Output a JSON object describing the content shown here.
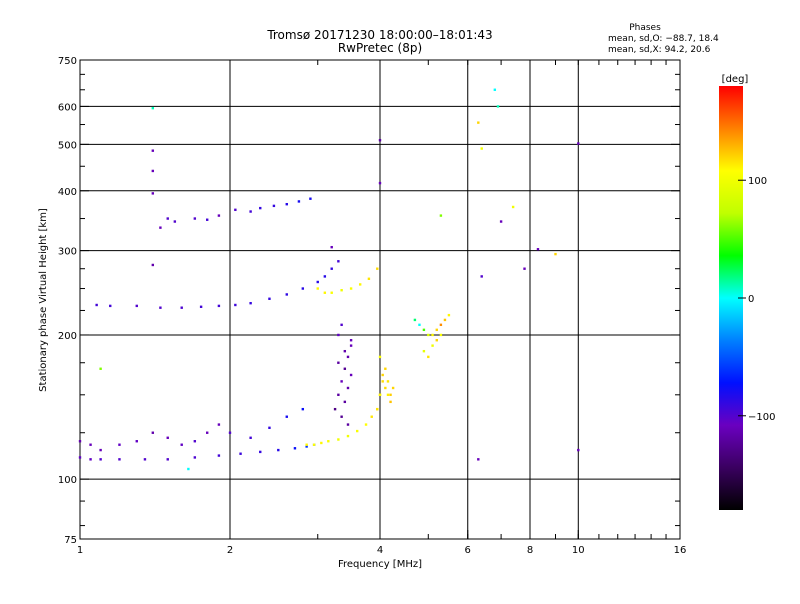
{
  "chart_data": {
    "type": "scatter",
    "title": "Tromsø 20171230 18:00:00–18:01:43",
    "subtitle": "RwPretec (8p)",
    "phases": {
      "title": "Phases",
      "line_o": "mean, sd,O: −88.7, 18.4",
      "line_x": "mean, sd,X:  94.2, 20.6"
    },
    "xlabel": "Frequency [MHz]",
    "ylabel": "Stationary phase Virtual Height [km]",
    "x_scale": "log",
    "y_scale": "log",
    "xlim": [
      1,
      16
    ],
    "ylim": [
      75,
      750
    ],
    "x_ticks": [
      {
        "value": 1,
        "label": "1"
      },
      {
        "value": 2,
        "label": "2"
      },
      {
        "value": 4,
        "label": "4"
      },
      {
        "value": 6,
        "label": "6"
      },
      {
        "value": 8,
        "label": "8"
      },
      {
        "value": 10,
        "label": "10"
      },
      {
        "value": 16,
        "label": "16"
      }
    ],
    "y_ticks": [
      {
        "value": 75,
        "label": "75"
      },
      {
        "value": 100,
        "label": "100"
      },
      {
        "value": 200,
        "label": "200"
      },
      {
        "value": 300,
        "label": "300"
      },
      {
        "value": 400,
        "label": "400"
      },
      {
        "value": 500,
        "label": "500"
      },
      {
        "value": 600,
        "label": "600"
      },
      {
        "value": 750,
        "label": "750"
      }
    ],
    "x_grid": [
      2,
      4,
      6,
      8,
      10
    ],
    "y_grid": [
      100,
      200,
      300,
      400,
      500,
      600
    ],
    "grid": true,
    "colorbar": {
      "label": "[deg]",
      "range": [
        -180,
        180
      ],
      "ticks": [
        {
          "value": 100,
          "label": "100"
        },
        {
          "value": 0,
          "label": "0"
        },
        {
          "value": -100,
          "label": "−100"
        }
      ],
      "stops": [
        "#000000",
        "#3a0060",
        "#6a00c0",
        "#0010ff",
        "#0080ff",
        "#00ffff",
        "#00ff00",
        "#c0ff00",
        "#ffff00",
        "#ff8000",
        "#ff0000"
      ]
    },
    "series": [
      {
        "segments": [
          {
            "x": [
              1.0,
              1.05,
              1.1,
              1.2,
              1.35,
              1.5,
              1.7,
              1.9,
              2.1,
              2.3,
              2.5,
              2.7,
              2.85,
              2.95
            ],
            "y": [
              111,
              110,
              110,
              110,
              110,
              110,
              111,
              112,
              113,
              114,
              115,
              116,
              117,
              118
            ],
            "phase": [
              -105,
              -105,
              -100,
              -100,
              -100,
              -100,
              -98,
              -95,
              -92,
              -90,
              -85,
              -75,
              -60,
              -50
            ]
          },
          {
            "x": [
              1.0,
              1.05,
              1.1,
              1.2,
              1.3,
              1.4,
              1.5,
              1.6,
              1.7,
              1.8,
              1.9,
              2.0,
              2.2,
              2.4,
              2.6,
              2.8
            ],
            "y": [
              120,
              118,
              115,
              118,
              120,
              125,
              122,
              118,
              120,
              125,
              130,
              125,
              122,
              128,
              135,
              140
            ],
            "phase": [
              -115,
              -110,
              -110,
              -105,
              -105,
              -115,
              -110,
              -105,
              -100,
              -110,
              -110,
              -100,
              -95,
              -90,
              -80,
              -75
            ]
          },
          {
            "x": [
              1.08,
              1.15,
              1.3,
              1.45,
              1.6,
              1.75,
              1.9,
              2.05,
              2.2,
              2.4,
              2.6,
              2.8,
              3.0,
              3.1,
              3.2,
              3.3
            ],
            "y": [
              231,
              230,
              230,
              228,
              228,
              229,
              230,
              231,
              233,
              238,
              243,
              250,
              258,
              265,
              275,
              285
            ],
            "phase": [
              -95,
              -95,
              -100,
              -100,
              -98,
              -95,
              -95,
              -93,
              -90,
              -90,
              -88,
              -86,
              -85,
              -85,
              -90,
              -95
            ]
          },
          {
            "x": [
              1.5,
              1.55,
              1.7,
              1.8,
              1.9,
              2.05,
              2.2,
              2.3,
              2.45,
              2.6,
              2.75,
              2.9
            ],
            "y": [
              350,
              345,
              350,
              348,
              355,
              365,
              362,
              368,
              372,
              375,
              380,
              385
            ],
            "phase": [
              -100,
              -100,
              -100,
              -95,
              -110,
              -100,
              -95,
              -90,
              -90,
              -85,
              -80,
              -80
            ]
          },
          {
            "x": [
              2.85,
              2.95,
              3.05,
              3.15,
              3.3,
              3.45,
              3.6,
              3.75,
              3.85,
              3.95,
              4.0
            ],
            "y": [
              118,
              118,
              119,
              120,
              121,
              123,
              126,
              130,
              135,
              140,
              150
            ],
            "phase": [
              110,
              108,
              110,
              105,
              100,
              100,
              105,
              108,
              115,
              118,
              120
            ]
          },
          {
            "x": [
              3.0,
              3.1,
              3.2,
              3.35,
              3.5,
              3.65,
              3.8,
              3.95
            ],
            "y": [
              250,
              245,
              245,
              248,
              250,
              255,
              262,
              275
            ],
            "phase": [
              110,
              110,
              105,
              100,
              105,
              110,
              115,
              118
            ]
          },
          {
            "x": [
              3.25,
              3.3,
              3.35,
              3.4,
              3.45,
              3.5,
              3.3,
              3.35,
              3.4,
              3.45,
              3.5,
              3.3,
              3.4,
              3.5,
              3.35,
              3.45
            ],
            "y": [
              140,
              150,
              160,
              170,
              180,
              190,
              200,
              210,
              145,
              155,
              165,
              175,
              185,
              195,
              135,
              130
            ],
            "phase": [
              -130,
              -120,
              -110,
              -125,
              -115,
              -110,
              -105,
              -100,
              -120,
              -115,
              -110,
              -120,
              -115,
              -110,
              -125,
              -120
            ]
          },
          {
            "x": [
              3.95,
              4.0,
              4.05,
              4.1,
              4.15,
              4.2,
              4.0,
              4.05,
              4.1,
              4.15,
              4.2,
              4.25
            ],
            "y": [
              140,
              150,
              160,
              170,
              150,
              145,
              180,
              165,
              155,
              160,
              150,
              155
            ],
            "phase": [
              115,
              110,
              118,
              120,
              112,
              125,
              105,
              120,
              118,
              115,
              122,
              120
            ]
          },
          {
            "x": [
              4.7,
              4.8,
              4.9,
              5.0,
              5.1,
              5.2,
              5.3,
              5.4,
              5.5,
              4.9,
              5.0,
              5.1,
              5.2,
              5.3
            ],
            "y": [
              215,
              210,
              205,
              200,
              200,
              205,
              210,
              215,
              220,
              185,
              180,
              190,
              195,
              200
            ],
            "phase": [
              20,
              0,
              50,
              90,
              110,
              120,
              140,
              125,
              110,
              95,
              115,
              100,
              120,
              105
            ]
          },
          {
            "x": [
              1.4,
              1.4,
              1.4,
              1.4,
              1.4,
              1.45,
              1.1,
              1.65,
              3.2,
              4.0,
              4.0,
              5.3,
              6.3,
              6.4,
              6.8,
              6.9,
              7.0,
              7.4,
              7.8,
              8.3,
              9.0,
              10.0,
              10.0,
              6.3,
              6.4
            ],
            "y": [
              595,
              485,
              440,
              395,
              280,
              335,
              170,
              105,
              305,
              510,
              415,
              355,
              555,
              490,
              650,
              600,
              345,
              370,
              275,
              302,
              295,
              502,
              115,
              110,
              265
            ],
            "phase": [
              10,
              -110,
              -110,
              -110,
              -115,
              -110,
              60,
              0,
              -110,
              -120,
              -110,
              60,
              120,
              100,
              0,
              10,
              -110,
              100,
              -110,
              -110,
              120,
              -110,
              -110,
              -110,
              -100
            ]
          }
        ]
      }
    ]
  }
}
